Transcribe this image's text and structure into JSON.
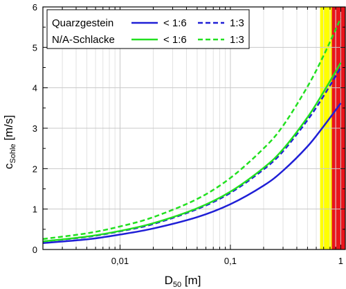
{
  "chart_data": {
    "type": "line",
    "x_scale": "log",
    "xlim": [
      0.002,
      1.1
    ],
    "ylim": [
      0,
      6
    ],
    "xlabel": {
      "main": "D",
      "sub": "50",
      "unit": " [m]"
    },
    "ylabel": {
      "main": "c",
      "sub": "Sohle",
      "unit": " [m/s]"
    },
    "xticks": [
      {
        "value": 0.01,
        "label": "0,01"
      },
      {
        "value": 0.1,
        "label": "0,1"
      },
      {
        "value": 1,
        "label": "1"
      }
    ],
    "yticks": [
      {
        "value": 0,
        "label": "0"
      },
      {
        "value": 1,
        "label": "1"
      },
      {
        "value": 2,
        "label": "2"
      },
      {
        "value": 3,
        "label": "3"
      },
      {
        "value": 4,
        "label": "4"
      },
      {
        "value": 5,
        "label": "5"
      },
      {
        "value": 6,
        "label": "6"
      }
    ],
    "grid": true,
    "bands": [
      {
        "x0": 0.65,
        "x1": 0.83,
        "color": "#ffff00"
      },
      {
        "x0": 0.83,
        "x1": 1.1,
        "color": "#e8141b"
      }
    ],
    "series": [
      {
        "name": "Quarzgestein < 1:6",
        "color": "#1f1fd6",
        "dash": "solid",
        "x": [
          0.002,
          0.005,
          0.01,
          0.02,
          0.05,
          0.1,
          0.2,
          0.3,
          0.5,
          0.7,
          1.0
        ],
        "y": [
          0.16,
          0.25,
          0.37,
          0.52,
          0.8,
          1.12,
          1.58,
          1.95,
          2.55,
          3.05,
          3.62
        ]
      },
      {
        "name": "Quarzgestein 1:3",
        "color": "#1f1fd6",
        "dash": "dashed",
        "x": [
          0.002,
          0.005,
          0.01,
          0.02,
          0.05,
          0.1,
          0.2,
          0.3,
          0.5,
          0.7,
          1.0
        ],
        "y": [
          0.2,
          0.31,
          0.45,
          0.63,
          1.0,
          1.4,
          1.98,
          2.43,
          3.2,
          3.8,
          4.5
        ]
      },
      {
        "name": "N/A-Schlacke < 1:6",
        "color": "#22e020",
        "dash": "solid",
        "x": [
          0.002,
          0.005,
          0.01,
          0.02,
          0.05,
          0.1,
          0.2,
          0.3,
          0.5,
          0.7,
          1.0
        ],
        "y": [
          0.2,
          0.32,
          0.46,
          0.65,
          1.02,
          1.43,
          2.02,
          2.48,
          3.27,
          3.9,
          4.62
        ]
      },
      {
        "name": "N/A-Schlacke 1:3",
        "color": "#22e020",
        "dash": "dashed",
        "x": [
          0.002,
          0.005,
          0.01,
          0.02,
          0.05,
          0.1,
          0.2,
          0.3,
          0.5,
          0.7,
          1.0
        ],
        "y": [
          0.26,
          0.4,
          0.57,
          0.8,
          1.25,
          1.77,
          2.5,
          3.06,
          4.03,
          4.8,
          5.72
        ]
      }
    ],
    "legend": {
      "placement": "top-left",
      "rows": [
        {
          "label": "Quarzgestein",
          "color": "#1f1fd6",
          "entries": [
            {
              "dash": "solid",
              "label": "< 1:6"
            },
            {
              "dash": "dashed",
              "label": "1:3"
            }
          ]
        },
        {
          "label": "N/A-Schlacke",
          "color": "#22e020",
          "entries": [
            {
              "dash": "solid",
              "label": "< 1:6"
            },
            {
              "dash": "dashed",
              "label": "1:3"
            }
          ]
        }
      ]
    }
  }
}
